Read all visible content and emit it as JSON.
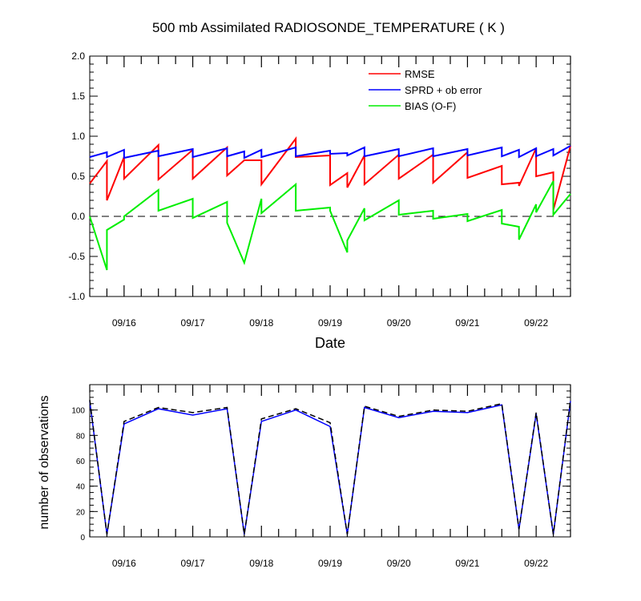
{
  "chart_data": [
    {
      "type": "line",
      "title": "500 mb Assimilated RADIOSONDE_TEMPERATURE ( K )",
      "xlabel": "Date",
      "ylabel": "",
      "ylim": [
        -1.0,
        2.0
      ],
      "yticks": [
        "-1.0",
        "-0.5",
        "0.0",
        "0.5",
        "1.0",
        "1.5",
        "2.0"
      ],
      "xticks": [
        "09/16",
        "09/17",
        "09/18",
        "09/19",
        "09/20",
        "09/21",
        "09/22"
      ],
      "xrange": [
        0,
        14
      ],
      "legend_position": "top-right",
      "zero_line": "dashed",
      "series": [
        {
          "name": "RMSE",
          "color": "#ff0000",
          "points": [
            [
              0,
              0.41
            ],
            [
              0.5,
              0.69
            ],
            [
              0.5,
              0.2
            ],
            [
              1,
              0.74
            ],
            [
              1,
              0.47
            ],
            [
              2,
              0.89
            ],
            [
              2,
              0.46
            ],
            [
              3,
              0.83
            ],
            [
              3,
              0.47
            ],
            [
              4,
              0.86
            ],
            [
              4,
              0.51
            ],
            [
              4.5,
              0.7
            ],
            [
              5,
              0.7
            ],
            [
              5,
              0.4
            ],
            [
              6,
              0.97
            ],
            [
              6,
              0.74
            ],
            [
              7,
              0.76
            ],
            [
              7,
              0.39
            ],
            [
              7.5,
              0.54
            ],
            [
              7.5,
              0.36
            ],
            [
              8,
              0.76
            ],
            [
              8,
              0.4
            ],
            [
              9,
              0.77
            ],
            [
              9,
              0.47
            ],
            [
              10,
              0.77
            ],
            [
              10,
              0.42
            ],
            [
              11,
              0.8
            ],
            [
              11,
              0.48
            ],
            [
              12,
              0.63
            ],
            [
              12,
              0.4
            ],
            [
              12.5,
              0.42
            ],
            [
              12.5,
              0.38
            ],
            [
              13,
              0.85
            ],
            [
              13,
              0.5
            ],
            [
              13.5,
              0.55
            ],
            [
              13.5,
              0.08
            ],
            [
              14,
              0.88
            ]
          ]
        },
        {
          "name": "SPRD + ob error",
          "color": "#0000ff",
          "points": [
            [
              0,
              0.74
            ],
            [
              0.5,
              0.8
            ],
            [
              0.5,
              0.74
            ],
            [
              1,
              0.83
            ],
            [
              1,
              0.73
            ],
            [
              2,
              0.82
            ],
            [
              2,
              0.75
            ],
            [
              3,
              0.84
            ],
            [
              3,
              0.74
            ],
            [
              4,
              0.85
            ],
            [
              4,
              0.75
            ],
            [
              4.5,
              0.81
            ],
            [
              4.5,
              0.73
            ],
            [
              5,
              0.83
            ],
            [
              5,
              0.74
            ],
            [
              6,
              0.86
            ],
            [
              6,
              0.75
            ],
            [
              7,
              0.82
            ],
            [
              7,
              0.78
            ],
            [
              7.5,
              0.79
            ],
            [
              7.5,
              0.76
            ],
            [
              8,
              0.86
            ],
            [
              8,
              0.75
            ],
            [
              9,
              0.84
            ],
            [
              9,
              0.75
            ],
            [
              10,
              0.85
            ],
            [
              10,
              0.75
            ],
            [
              11,
              0.84
            ],
            [
              11,
              0.76
            ],
            [
              12,
              0.86
            ],
            [
              12,
              0.75
            ],
            [
              12.5,
              0.83
            ],
            [
              12.5,
              0.74
            ],
            [
              13,
              0.85
            ],
            [
              13,
              0.75
            ],
            [
              13.5,
              0.84
            ],
            [
              13.5,
              0.76
            ],
            [
              14,
              0.88
            ]
          ]
        },
        {
          "name": "BIAS (O-F)",
          "color": "#00ee00",
          "points": [
            [
              0,
              0.0
            ],
            [
              0.5,
              -0.67
            ],
            [
              0.5,
              -0.17
            ],
            [
              1,
              -0.04
            ],
            [
              1,
              0.0
            ],
            [
              2,
              0.33
            ],
            [
              2,
              0.07
            ],
            [
              3,
              0.22
            ],
            [
              3,
              -0.02
            ],
            [
              4,
              0.18
            ],
            [
              4,
              -0.08
            ],
            [
              4.5,
              -0.58
            ],
            [
              5,
              0.22
            ],
            [
              5,
              0.04
            ],
            [
              6,
              0.4
            ],
            [
              6,
              0.07
            ],
            [
              7,
              0.11
            ],
            [
              7,
              0.07
            ],
            [
              7.5,
              -0.45
            ],
            [
              7.5,
              -0.3
            ],
            [
              8,
              0.1
            ],
            [
              8,
              -0.05
            ],
            [
              9,
              0.2
            ],
            [
              9,
              0.02
            ],
            [
              10,
              0.07
            ],
            [
              10,
              -0.03
            ],
            [
              11,
              0.03
            ],
            [
              11,
              -0.06
            ],
            [
              12,
              0.08
            ],
            [
              12,
              -0.09
            ],
            [
              12.5,
              -0.13
            ],
            [
              12.5,
              -0.29
            ],
            [
              13,
              0.15
            ],
            [
              13,
              0.05
            ],
            [
              13.5,
              0.44
            ],
            [
              13.5,
              0.02
            ],
            [
              14,
              0.28
            ]
          ]
        }
      ]
    },
    {
      "type": "line",
      "title": "",
      "xlabel": "",
      "ylabel": "number of observations",
      "ylim": [
        0,
        120
      ],
      "yticks": [
        "0",
        "20",
        "40",
        "60",
        "80",
        "100"
      ],
      "xticks": [
        "09/16",
        "09/17",
        "09/18",
        "09/19",
        "09/20",
        "09/21",
        "09/22"
      ],
      "xrange": [
        0,
        14
      ],
      "series": [
        {
          "name": "",
          "color": "#0000ff",
          "style": "solid",
          "points": [
            [
              0,
              107
            ],
            [
              0.5,
              2
            ],
            [
              1,
              89
            ],
            [
              2,
              101
            ],
            [
              3,
              96
            ],
            [
              4,
              101
            ],
            [
              4.5,
              2
            ],
            [
              5,
              91
            ],
            [
              6,
              100
            ],
            [
              7,
              87
            ],
            [
              7.5,
              2
            ],
            [
              8,
              102
            ],
            [
              9,
              94
            ],
            [
              10,
              99
            ],
            [
              11,
              98
            ],
            [
              12,
              104
            ],
            [
              12.5,
              6
            ],
            [
              13,
              97
            ],
            [
              13.5,
              2
            ],
            [
              14,
              107
            ]
          ]
        },
        {
          "name": "",
          "color": "#000000",
          "style": "dashed",
          "points": [
            [
              0,
              108
            ],
            [
              0.5,
              2
            ],
            [
              1,
              91
            ],
            [
              2,
              102
            ],
            [
              3,
              98
            ],
            [
              4,
              102
            ],
            [
              4.5,
              2
            ],
            [
              5,
              93
            ],
            [
              6,
              101
            ],
            [
              7,
              90
            ],
            [
              7.5,
              2
            ],
            [
              8,
              103
            ],
            [
              9,
              95
            ],
            [
              10,
              100
            ],
            [
              11,
              99
            ],
            [
              12,
              105
            ],
            [
              12.5,
              6
            ],
            [
              13,
              98
            ],
            [
              13.5,
              2
            ],
            [
              14,
              108
            ]
          ]
        }
      ]
    }
  ]
}
